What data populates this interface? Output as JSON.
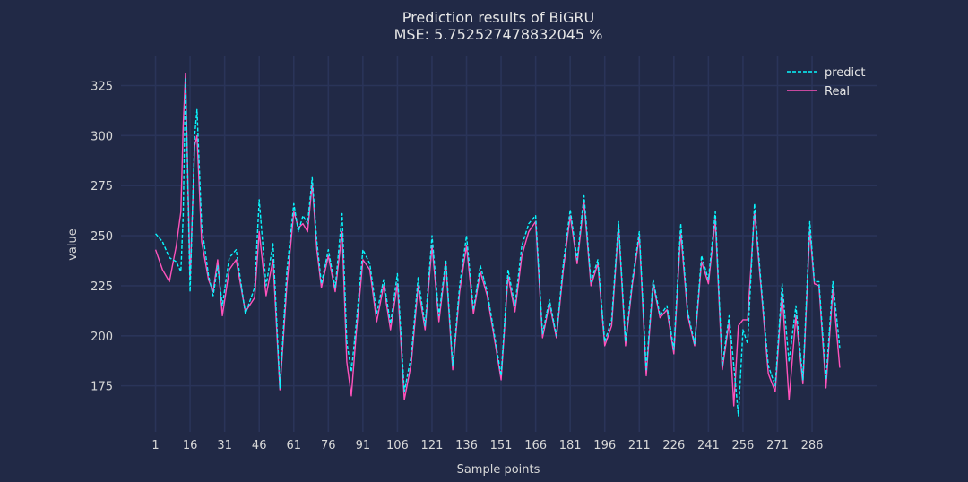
{
  "chart_data": {
    "type": "line",
    "title": "Prediction results of BiGRU",
    "subtitle": "MSE: 5.752527478832045 %",
    "xlabel": "Sample points",
    "ylabel": "value",
    "xlim": [
      1,
      299
    ],
    "ylim": [
      152,
      340
    ],
    "xticks": [
      1,
      16,
      31,
      46,
      61,
      76,
      91,
      106,
      121,
      136,
      151,
      166,
      181,
      196,
      211,
      226,
      241,
      256,
      271,
      286
    ],
    "yticks": [
      175,
      200,
      225,
      250,
      275,
      300,
      325
    ],
    "grid": true,
    "legend_position": "top-right",
    "colors": {
      "background": "#212946",
      "grid": "#2A3459",
      "predict": "#08F7FE",
      "real": "#FE53BB",
      "text": "#d8d8d8"
    },
    "series": [
      {
        "name": "predict",
        "style": "dashed",
        "x": [
          1,
          4,
          7,
          10,
          12,
          13,
          14,
          16,
          18,
          19,
          21,
          24,
          26,
          28,
          30,
          33,
          36,
          40,
          44,
          46,
          49,
          52,
          55,
          58,
          61,
          63,
          65,
          67,
          69,
          71,
          73,
          76,
          79,
          82,
          84,
          86,
          88,
          91,
          94,
          97,
          100,
          103,
          106,
          109,
          112,
          115,
          118,
          121,
          124,
          127,
          130,
          133,
          136,
          139,
          142,
          145,
          148,
          151,
          154,
          157,
          160,
          163,
          166,
          169,
          172,
          175,
          178,
          181,
          184,
          187,
          190,
          193,
          196,
          199,
          202,
          205,
          208,
          211,
          214,
          217,
          220,
          223,
          226,
          229,
          232,
          235,
          238,
          241,
          244,
          247,
          250,
          252,
          254,
          256,
          258,
          261,
          264,
          267,
          270,
          273,
          276,
          279,
          282,
          285,
          287,
          289,
          292,
          295,
          298
        ],
        "values": [
          251,
          247,
          239,
          237,
          232,
          260,
          329,
          222,
          300,
          313,
          255,
          230,
          220,
          235,
          215,
          239,
          243,
          211,
          224,
          268,
          225,
          246,
          174,
          232,
          266,
          252,
          260,
          256,
          279,
          247,
          226,
          243,
          224,
          261,
          197,
          182,
          205,
          243,
          236,
          211,
          228,
          206,
          231,
          172,
          190,
          229,
          205,
          250,
          210,
          238,
          185,
          225,
          250,
          213,
          235,
          222,
          201,
          180,
          233,
          215,
          245,
          256,
          260,
          201,
          218,
          200,
          236,
          263,
          238,
          270,
          227,
          238,
          197,
          208,
          257,
          197,
          228,
          252,
          183,
          228,
          210,
          215,
          193,
          256,
          212,
          196,
          240,
          228,
          262,
          185,
          210,
          185,
          160,
          203,
          196,
          266,
          224,
          185,
          175,
          226,
          187,
          215,
          178,
          257,
          227,
          227,
          178,
          227,
          194
        ],
        "interpolated": true
      },
      {
        "name": "Real",
        "style": "solid",
        "x": [
          1,
          4,
          7,
          10,
          12,
          13,
          14,
          16,
          18,
          19,
          21,
          24,
          26,
          28,
          30,
          33,
          36,
          40,
          44,
          46,
          49,
          52,
          55,
          58,
          61,
          63,
          65,
          67,
          69,
          71,
          73,
          76,
          79,
          82,
          84,
          86,
          88,
          91,
          94,
          97,
          100,
          103,
          106,
          109,
          112,
          115,
          118,
          121,
          124,
          127,
          130,
          133,
          136,
          139,
          142,
          145,
          148,
          151,
          154,
          157,
          160,
          163,
          166,
          169,
          172,
          175,
          178,
          181,
          184,
          187,
          190,
          193,
          196,
          199,
          202,
          205,
          208,
          211,
          214,
          217,
          220,
          223,
          226,
          229,
          232,
          235,
          238,
          241,
          244,
          247,
          250,
          252,
          254,
          256,
          258,
          261,
          264,
          267,
          270,
          273,
          276,
          279,
          282,
          285,
          287,
          289,
          292,
          295,
          298
        ],
        "values": [
          243,
          233,
          227,
          245,
          262,
          305,
          331,
          228,
          295,
          300,
          247,
          228,
          222,
          238,
          210,
          233,
          238,
          212,
          219,
          252,
          220,
          238,
          173,
          225,
          262,
          254,
          256,
          252,
          276,
          243,
          224,
          240,
          222,
          252,
          187,
          170,
          200,
          238,
          233,
          207,
          225,
          203,
          226,
          168,
          186,
          225,
          203,
          245,
          207,
          236,
          183,
          222,
          245,
          211,
          232,
          220,
          199,
          178,
          230,
          212,
          240,
          252,
          257,
          199,
          216,
          199,
          233,
          260,
          236,
          267,
          225,
          236,
          195,
          205,
          255,
          195,
          226,
          250,
          180,
          226,
          209,
          213,
          191,
          252,
          210,
          195,
          237,
          226,
          258,
          183,
          207,
          165,
          205,
          208,
          208,
          262,
          222,
          181,
          172,
          222,
          168,
          210,
          176,
          253,
          226,
          225,
          174,
          223,
          184
        ],
        "interpolated": true
      }
    ]
  }
}
